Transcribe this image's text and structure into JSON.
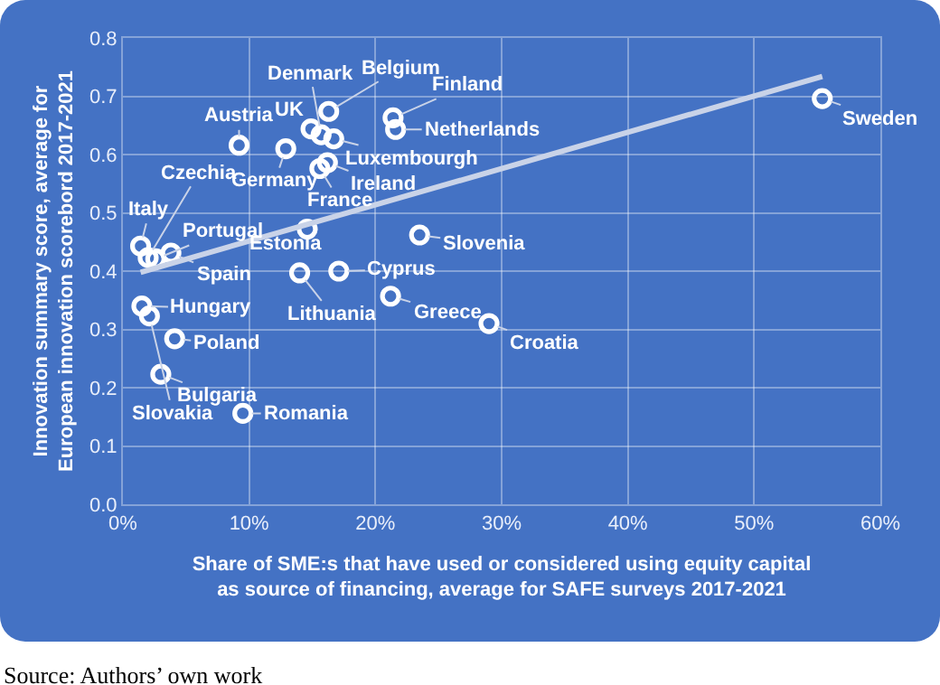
{
  "chart_data": {
    "type": "scatter",
    "xlabel": "Share of SME:s that have used or considered using equity capital as source of financing, average for SAFE surveys 2017-2021",
    "ylabel": "Innovation summary score, average for European innovation scorebord 2017-2021",
    "x": [
      1.4,
      2.0,
      2.6,
      3.8,
      1.5,
      2.1,
      4.1,
      3.0,
      9.5,
      9.2,
      12.9,
      14.9,
      16.3,
      15.7,
      16.7,
      16.2,
      15.6,
      14.6,
      14.0,
      17.1,
      21.2,
      23.5,
      21.4,
      21.6,
      29.0,
      55.4
    ],
    "series": [
      {
        "color": "#ffffff",
        "marker": "circle",
        "values": [
          0.443,
          0.423,
          0.421,
          0.431,
          0.34,
          0.323,
          0.284,
          0.223,
          0.156,
          0.616,
          0.61,
          0.644,
          0.674,
          0.634,
          0.627,
          0.586,
          0.576,
          0.472,
          0.397,
          0.4,
          0.357,
          0.462,
          0.663,
          0.643,
          0.31,
          0.696
        ]
      },
      {
        "type": "line",
        "color": "#c9d3e8",
        "x": [
          1.4,
          55.4
        ],
        "values": [
          0.398,
          0.734
        ]
      }
    ],
    "grid": true,
    "legend": false,
    "xlim": [
      0,
      60
    ],
    "xticks": [
      {
        "value": 0,
        "label": "0%"
      },
      {
        "value": 10,
        "label": "10%"
      },
      {
        "value": 20,
        "label": "20%"
      },
      {
        "value": 30,
        "label": "30%"
      },
      {
        "value": 40,
        "label": "40%"
      },
      {
        "value": 50,
        "label": "50%"
      },
      {
        "value": 60,
        "label": "60%"
      }
    ],
    "ylim": [
      0,
      0.8
    ],
    "yticks": [
      {
        "value": 0,
        "label": "0.0"
      },
      0.1,
      0.2,
      0.3,
      0.4,
      0.5,
      0.6,
      0.7,
      0.8
    ],
    "annotations": [
      {
        "text": "Italy",
        "x": 1.4,
        "y": 0.443
      },
      {
        "text": "Czechia",
        "x": 2.0,
        "y": 0.423
      },
      {
        "text": "Portugal",
        "x": 2.6,
        "y": 0.421
      },
      {
        "text": "Spain",
        "x": 3.8,
        "y": 0.431
      },
      {
        "text": "Hungary",
        "x": 1.5,
        "y": 0.34
      },
      {
        "text": "Slovakia",
        "x": 2.1,
        "y": 0.323
      },
      {
        "text": "Poland",
        "x": 4.1,
        "y": 0.284
      },
      {
        "text": "Bulgaria",
        "x": 3.0,
        "y": 0.223
      },
      {
        "text": "Romania",
        "x": 9.5,
        "y": 0.156
      },
      {
        "text": "Austria",
        "x": 9.2,
        "y": 0.616
      },
      {
        "text": "Germany",
        "x": 12.9,
        "y": 0.61
      },
      {
        "text": "UK",
        "x": 14.9,
        "y": 0.644
      },
      {
        "text": "Belgium",
        "x": 16.3,
        "y": 0.674
      },
      {
        "text": "Denmark",
        "x": 15.7,
        "y": 0.634
      },
      {
        "text": "Luxembourgh",
        "x": 16.7,
        "y": 0.627
      },
      {
        "text": "Ireland",
        "x": 16.2,
        "y": 0.586
      },
      {
        "text": "France",
        "x": 15.6,
        "y": 0.576
      },
      {
        "text": "Estonia",
        "x": 14.6,
        "y": 0.472
      },
      {
        "text": "Lithuania",
        "x": 14.0,
        "y": 0.397
      },
      {
        "text": "Cyprus",
        "x": 17.1,
        "y": 0.4
      },
      {
        "text": "Greece",
        "x": 21.2,
        "y": 0.357
      },
      {
        "text": "Slovenia",
        "x": 23.5,
        "y": 0.462
      },
      {
        "text": "Finland",
        "x": 21.4,
        "y": 0.663
      },
      {
        "text": "Netherlands",
        "x": 21.6,
        "y": 0.643
      },
      {
        "text": "Croatia",
        "x": 29.0,
        "y": 0.31
      },
      {
        "text": "Sweden",
        "x": 55.4,
        "y": 0.696
      },
      "Source: Authors’ own work"
    ]
  }
}
